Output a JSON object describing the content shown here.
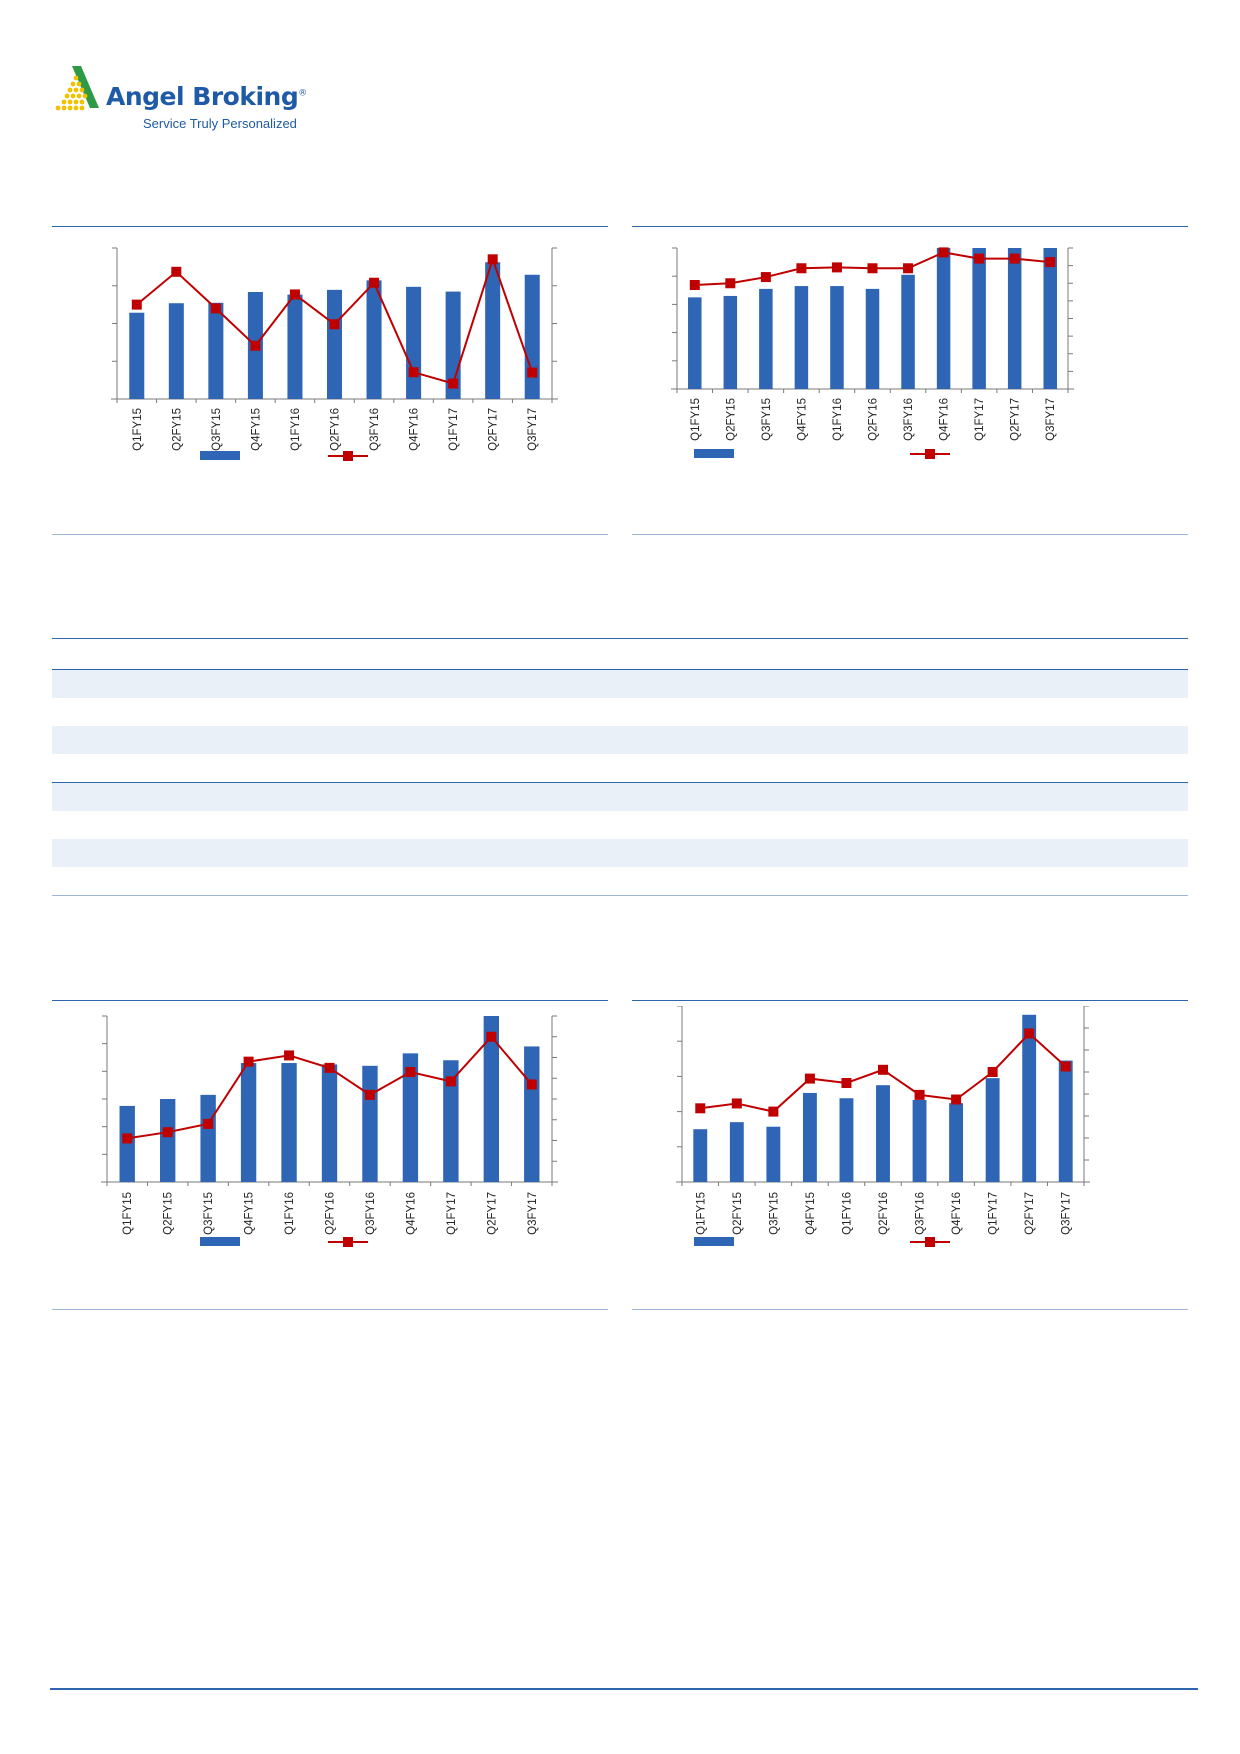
{
  "brand": {
    "name": "Angel Broking",
    "reg_mark": "®",
    "tagline": "Service Truly Personalized",
    "colors": {
      "blue": "#1f5aa6",
      "green": "#2e9a45",
      "yellow": "#f2c200"
    }
  },
  "chart_data": [
    {
      "type": "bar",
      "categories": [
        "Q1FY15",
        "Q2FY15",
        "Q3FY15",
        "Q4FY15",
        "Q1FY16",
        "Q2FY16",
        "Q3FY16",
        "Q4FY16",
        "Q1FY17",
        "Q2FY17",
        "Q3FY17"
      ],
      "series": [
        {
          "kind": "bar",
          "axis": "left",
          "color": "#2e66b5",
          "values": [
            2.0,
            2.22,
            2.23,
            2.48,
            2.42,
            2.53,
            2.75,
            2.6,
            2.49,
            3.17,
            2.88
          ]
        },
        {
          "kind": "line",
          "axis": "right",
          "color": "#c00000",
          "values": [
            2.5,
            3.37,
            2.4,
            1.41,
            2.77,
            1.98,
            3.08,
            0.71,
            0.41,
            3.7,
            0.7
          ]
        }
      ],
      "ylim_left": [
        0,
        3.5
      ],
      "ylim_right": [
        0,
        4
      ],
      "legend": "bottom"
    },
    {
      "type": "bar",
      "categories": [
        "Q1FY15",
        "Q2FY15",
        "Q3FY15",
        "Q4FY15",
        "Q1FY16",
        "Q2FY16",
        "Q3FY16",
        "Q4FY16",
        "Q1FY17",
        "Q2FY17",
        "Q3FY17"
      ],
      "series": [
        {
          "kind": "bar",
          "axis": "left",
          "color": "#2e66b5",
          "values": [
            3.25,
            3.3,
            3.55,
            3.65,
            3.65,
            3.55,
            4.05,
            5.0,
            5.0,
            5.0,
            5.0
          ]
        },
        {
          "kind": "line",
          "axis": "right",
          "color": "#c00000",
          "values": [
            5.9,
            6.0,
            6.35,
            6.85,
            6.9,
            6.85,
            6.85,
            7.75,
            7.4,
            7.4,
            7.2
          ]
        }
      ],
      "ylim_left": [
        0,
        5
      ],
      "ylim_right": [
        0,
        8
      ],
      "legend": "bottom"
    },
    {
      "type": "bar",
      "categories": [
        "Q1FY15",
        "Q2FY15",
        "Q3FY15",
        "Q4FY15",
        "Q1FY16",
        "Q2FY16",
        "Q3FY16",
        "Q4FY16",
        "Q1FY17",
        "Q2FY17",
        "Q3FY17"
      ],
      "series": [
        {
          "kind": "bar",
          "axis": "left",
          "color": "#2e66b5",
          "values": [
            2.75,
            3.0,
            3.15,
            4.3,
            4.3,
            4.25,
            4.2,
            4.65,
            4.4,
            6.0,
            4.9
          ]
        },
        {
          "kind": "line",
          "axis": "right",
          "color": "#c00000",
          "values": [
            2.1,
            2.4,
            2.8,
            5.8,
            6.1,
            5.5,
            4.2,
            5.3,
            4.85,
            7.0,
            4.7
          ]
        }
      ],
      "ylim_left": [
        0,
        6
      ],
      "ylim_right": [
        0,
        8
      ],
      "legend": "bottom"
    },
    {
      "type": "bar",
      "categories": [
        "Q1FY15",
        "Q2FY15",
        "Q3FY15",
        "Q4FY15",
        "Q1FY16",
        "Q2FY16",
        "Q3FY16",
        "Q4FY16",
        "Q1FY17",
        "Q2FY17",
        "Q3FY17"
      ],
      "series": [
        {
          "kind": "bar",
          "axis": "left",
          "color": "#2e66b5",
          "values": [
            1.5,
            1.7,
            1.57,
            2.53,
            2.38,
            2.75,
            2.33,
            2.24,
            2.95,
            4.75,
            3.45
          ]
        },
        {
          "kind": "line",
          "axis": "right",
          "color": "#c00000",
          "values": [
            3.35,
            3.57,
            3.2,
            4.7,
            4.5,
            5.1,
            3.96,
            3.75,
            5.0,
            6.75,
            5.25
          ]
        }
      ],
      "ylim_left": [
        0,
        5
      ],
      "ylim_right": [
        0,
        8
      ],
      "legend": "bottom"
    }
  ],
  "table": {
    "rows": 8,
    "shaded_rows": [
      0,
      2,
      4,
      6
    ]
  }
}
